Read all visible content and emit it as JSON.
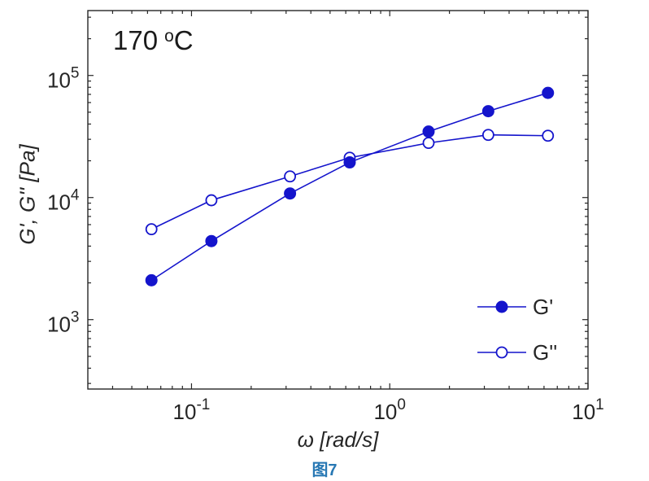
{
  "figure": {
    "annotation": {
      "value": "170",
      "degree_symbol": "o",
      "unit": "C"
    },
    "caption": "图7"
  },
  "chart_data": {
    "type": "line",
    "title": "",
    "annotation": "170 °C",
    "xlabel": "ω [rad/s]",
    "ylabel": "G', G'' [Pa]",
    "x_scale": "log",
    "y_scale": "log",
    "xlim": [
      0.03,
      10
    ],
    "ylim": [
      270,
      340000
    ],
    "grid": false,
    "legend_position": "lower-right",
    "legend_box": false,
    "x": [
      0.0628,
      0.126,
      0.314,
      0.628,
      1.57,
      3.14,
      6.28
    ],
    "series": [
      {
        "name": "G'",
        "marker": "filled-circle",
        "values": [
          2100,
          4400,
          10800,
          19400,
          34700,
          51000,
          72000
        ]
      },
      {
        "name": "G''",
        "marker": "open-circle",
        "values": [
          5500,
          9500,
          14900,
          21200,
          28000,
          32600,
          32100
        ]
      }
    ],
    "x_ticks": [
      {
        "value": 0.1,
        "base": "10",
        "exp": "-1"
      },
      {
        "value": 1,
        "base": "10",
        "exp": "0"
      },
      {
        "value": 10,
        "base": "10",
        "exp": "1"
      }
    ],
    "y_ticks": [
      {
        "value": 1000,
        "base": "10",
        "exp": "3"
      },
      {
        "value": 10000,
        "base": "10",
        "exp": "4"
      },
      {
        "value": 100000,
        "base": "10",
        "exp": "5"
      }
    ],
    "colors": {
      "series": "#1414cc",
      "axis": "#262626",
      "caption": "#2878b4"
    }
  }
}
